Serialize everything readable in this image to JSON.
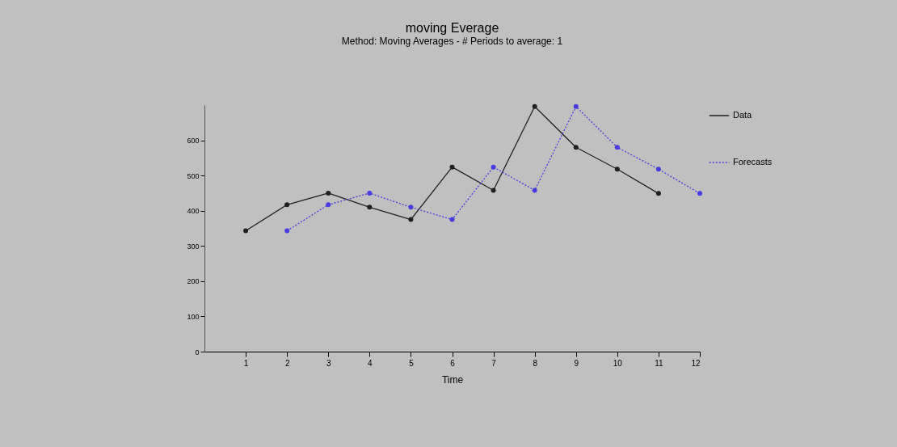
{
  "chart_data": {
    "type": "line",
    "title": "moving Everage",
    "subtitle": "Method: Moving Averages - # Periods to average:  1",
    "xlabel": "Time",
    "xlim": [
      0,
      12
    ],
    "xticks": [
      1,
      2,
      3,
      4,
      5,
      6,
      7,
      8,
      9,
      10,
      11,
      12
    ],
    "ylim": [
      0,
      700
    ],
    "yticks": [
      0,
      100,
      200,
      300,
      400,
      500,
      600
    ],
    "grid": false,
    "legend": "right",
    "marker": "circle",
    "series": [
      {
        "name": "Data",
        "color": "#202020",
        "line_style": "solid",
        "x": [
          1,
          2,
          3,
          4,
          5,
          6,
          7,
          8,
          9,
          10,
          11
        ],
        "values": [
          343,
          417,
          450,
          410,
          375,
          524,
          458,
          696,
          580,
          518,
          449
        ]
      },
      {
        "name": "Forecasts",
        "color": "#4a3cdc",
        "line_style": "dotted",
        "x": [
          2,
          3,
          4,
          5,
          6,
          7,
          8,
          9,
          10,
          11,
          12
        ],
        "values": [
          343,
          417,
          450,
          410,
          375,
          524,
          458,
          696,
          580,
          518,
          449
        ]
      }
    ]
  }
}
